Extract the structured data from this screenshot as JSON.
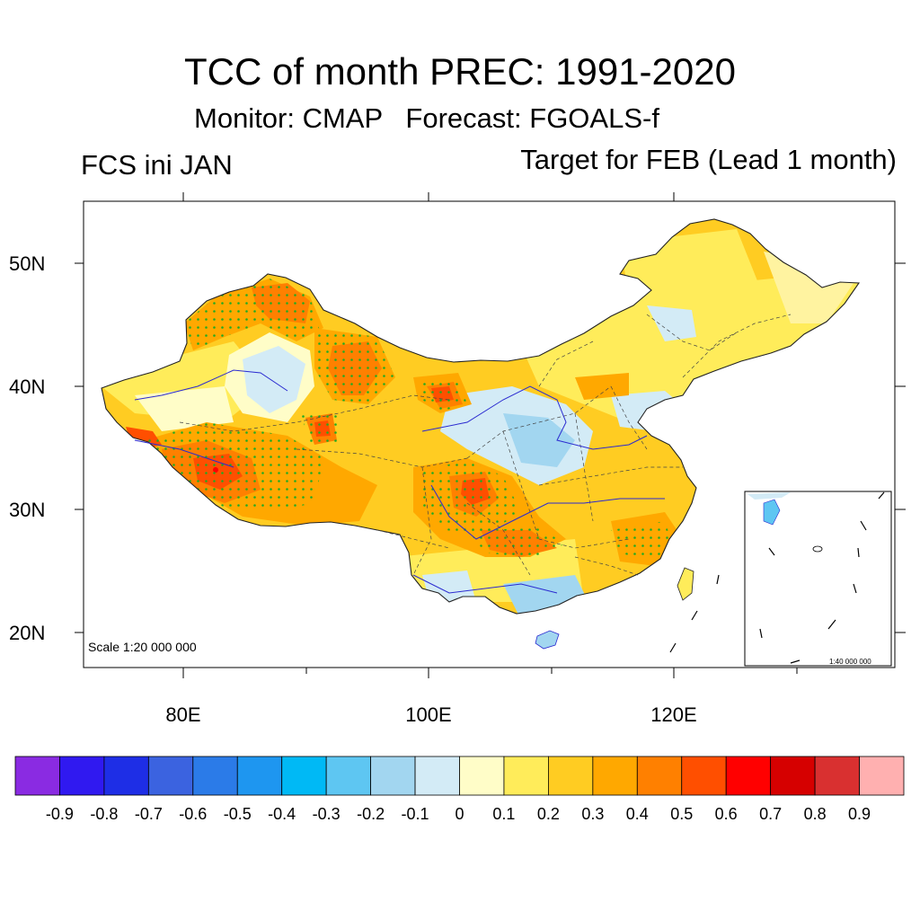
{
  "title": "TCC of month PREC: 1991-2020",
  "subtitle": "Monitor: CMAP   Forecast: FGOALS-f",
  "left_label": "FCS ini JAN",
  "right_label": "Target for FEB (Lead 1 month)",
  "axes": {
    "lat_labels": [
      "50N",
      "40N",
      "30N",
      "20N"
    ],
    "lon_labels": [
      "80E",
      "100E",
      "120E"
    ]
  },
  "map": {
    "scale_label": "Scale 1:20 000 000",
    "inset_scale_label": "1:40 000 000",
    "stipple_color": "#22aa22",
    "region": "China mainland and South China Sea inset"
  },
  "colorbar": {
    "labels": [
      "-0.9",
      "-0.8",
      "-0.7",
      "-0.6",
      "-0.5",
      "-0.4",
      "-0.3",
      "-0.2",
      "-0.1",
      "0",
      "0.1",
      "0.2",
      "0.3",
      "0.4",
      "0.5",
      "0.6",
      "0.7",
      "0.8",
      "0.9"
    ],
    "colors": [
      "#8a2be2",
      "#3019f0",
      "#1e2ee6",
      "#3b63e0",
      "#2b7be8",
      "#1e96f0",
      "#00b9f5",
      "#5ec6f2",
      "#a2d6f0",
      "#d3ebf6",
      "#fffdc8",
      "#ffec5a",
      "#ffcc22",
      "#ffa800",
      "#ff8000",
      "#ff4f00",
      "#ff0000",
      "#d60000",
      "#d93030",
      "#ffb0b0"
    ]
  }
}
